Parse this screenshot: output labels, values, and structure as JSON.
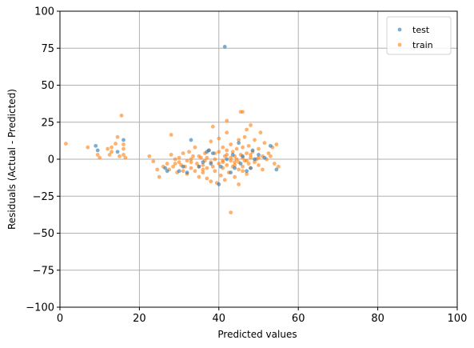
{
  "chart_data": {
    "type": "scatter",
    "title": "",
    "xlabel": "Predicted values",
    "ylabel": "Residuals (Actual - Predicted)",
    "xlim": [
      0,
      100
    ],
    "ylim": [
      -100,
      100
    ],
    "xticks": [
      0,
      20,
      40,
      60,
      80,
      100
    ],
    "yticks": [
      -100,
      -75,
      -50,
      -25,
      0,
      25,
      50,
      75,
      100
    ],
    "grid": true,
    "legend_position": "top-right",
    "series": [
      {
        "name": "train",
        "color": "#ff7f0e",
        "points": [
          [
            1.5,
            10.5
          ],
          [
            7,
            8
          ],
          [
            9.5,
            3
          ],
          [
            10,
            1
          ],
          [
            12,
            7
          ],
          [
            12.5,
            3
          ],
          [
            13,
            5
          ],
          [
            13,
            8
          ],
          [
            14,
            10.5
          ],
          [
            14.5,
            15
          ],
          [
            15,
            2
          ],
          [
            15.5,
            29.5
          ],
          [
            16,
            7
          ],
          [
            16,
            3
          ],
          [
            16.5,
            1
          ],
          [
            16,
            10
          ],
          [
            22.5,
            2
          ],
          [
            23.5,
            -1.5
          ],
          [
            24.5,
            -7
          ],
          [
            25,
            -12
          ],
          [
            26,
            -5
          ],
          [
            27,
            -3
          ],
          [
            27.5,
            -7
          ],
          [
            28,
            3
          ],
          [
            28,
            16.5
          ],
          [
            28.5,
            -5
          ],
          [
            29,
            -3
          ],
          [
            29.5,
            -9
          ],
          [
            30,
            -2
          ],
          [
            30.5,
            -4
          ],
          [
            31,
            4
          ],
          [
            31,
            -8
          ],
          [
            31.5,
            -5
          ],
          [
            32,
            -1
          ],
          [
            32,
            -10
          ],
          [
            32.5,
            5
          ],
          [
            33,
            -6
          ],
          [
            33,
            -2
          ],
          [
            33.5,
            2
          ],
          [
            34,
            -8
          ],
          [
            34,
            8
          ],
          [
            34.5,
            -3
          ],
          [
            35,
            -12
          ],
          [
            35,
            -5
          ],
          [
            35.5,
            1
          ],
          [
            36,
            -4
          ],
          [
            36,
            -9
          ],
          [
            36.5,
            4
          ],
          [
            36.5,
            -1
          ],
          [
            37,
            -13
          ],
          [
            37,
            -6
          ],
          [
            37.5,
            6
          ],
          [
            38,
            -15
          ],
          [
            38,
            -2
          ],
          [
            38,
            12
          ],
          [
            38.5,
            22
          ],
          [
            38.5,
            -5
          ],
          [
            39,
            4
          ],
          [
            39,
            -8
          ],
          [
            39.5,
            -16
          ],
          [
            40,
            -3
          ],
          [
            40,
            5
          ],
          [
            40,
            14
          ],
          [
            40.5,
            -11
          ],
          [
            41,
            -1
          ],
          [
            41,
            8
          ],
          [
            41,
            -6
          ],
          [
            41.5,
            2
          ],
          [
            41.5,
            -14
          ],
          [
            42,
            -4
          ],
          [
            42,
            26
          ],
          [
            42,
            18
          ],
          [
            42,
            3
          ],
          [
            42.5,
            -9
          ],
          [
            43,
            1
          ],
          [
            43,
            -36
          ],
          [
            43,
            10
          ],
          [
            43.5,
            -5
          ],
          [
            43.5,
            5
          ],
          [
            44,
            -2
          ],
          [
            44,
            -12
          ],
          [
            44.5,
            7
          ],
          [
            44.5,
            0
          ],
          [
            45,
            -17
          ],
          [
            45,
            -7
          ],
          [
            45,
            13
          ],
          [
            45.5,
            3
          ],
          [
            45.5,
            32
          ],
          [
            46,
            32
          ],
          [
            46,
            -5
          ],
          [
            46,
            8
          ],
          [
            46.5,
            -1
          ],
          [
            46.5,
            15
          ],
          [
            47,
            4
          ],
          [
            47,
            -10
          ],
          [
            47,
            20
          ],
          [
            47.5,
            -3
          ],
          [
            47.5,
            9
          ],
          [
            48,
            1
          ],
          [
            48,
            -6
          ],
          [
            48,
            23
          ],
          [
            48.5,
            5
          ],
          [
            49,
            -2
          ],
          [
            49,
            13
          ],
          [
            49.5,
            0
          ],
          [
            50,
            7
          ],
          [
            50,
            -4
          ],
          [
            50.5,
            18
          ],
          [
            51,
            2
          ],
          [
            51,
            -7
          ],
          [
            51.5,
            11
          ],
          [
            52,
            0
          ],
          [
            52.5,
            4
          ],
          [
            53,
            2
          ],
          [
            53.5,
            8
          ],
          [
            54,
            -3
          ],
          [
            54.5,
            10
          ],
          [
            55,
            -5
          ],
          [
            37,
            1
          ],
          [
            39,
            0
          ],
          [
            43,
            -1
          ],
          [
            44,
            2
          ],
          [
            45,
            -2
          ],
          [
            46,
            1
          ],
          [
            33,
            0
          ],
          [
            35,
            2
          ],
          [
            30,
            1
          ],
          [
            29,
            0
          ],
          [
            47,
            -1
          ],
          [
            48,
            3
          ],
          [
            50,
            1
          ],
          [
            41,
            -2
          ],
          [
            42,
            6
          ],
          [
            44,
            -4
          ],
          [
            46,
            -8
          ],
          [
            36,
            -7
          ]
        ]
      },
      {
        "name": "test",
        "color": "#1f77b4",
        "points": [
          [
            9,
            9
          ],
          [
            9.5,
            6
          ],
          [
            14.5,
            5
          ],
          [
            16,
            13
          ],
          [
            26.5,
            -6
          ],
          [
            27,
            -8
          ],
          [
            30,
            -8
          ],
          [
            31,
            -5
          ],
          [
            32,
            -9
          ],
          [
            33,
            13
          ],
          [
            35,
            -5
          ],
          [
            36,
            -2
          ],
          [
            37,
            5
          ],
          [
            37.5,
            6
          ],
          [
            38,
            -3
          ],
          [
            38.5,
            4
          ],
          [
            40,
            -17
          ],
          [
            40.5,
            -5
          ],
          [
            41.5,
            76
          ],
          [
            42,
            0
          ],
          [
            43,
            -9
          ],
          [
            43.5,
            3
          ],
          [
            44,
            -6
          ],
          [
            45,
            11
          ],
          [
            45.5,
            -3
          ],
          [
            46,
            2
          ],
          [
            47,
            -8
          ],
          [
            48,
            -6
          ],
          [
            48.5,
            6
          ],
          [
            49,
            0
          ],
          [
            50,
            3
          ],
          [
            51.5,
            1
          ],
          [
            53,
            9
          ],
          [
            54.5,
            -7
          ]
        ]
      }
    ]
  }
}
